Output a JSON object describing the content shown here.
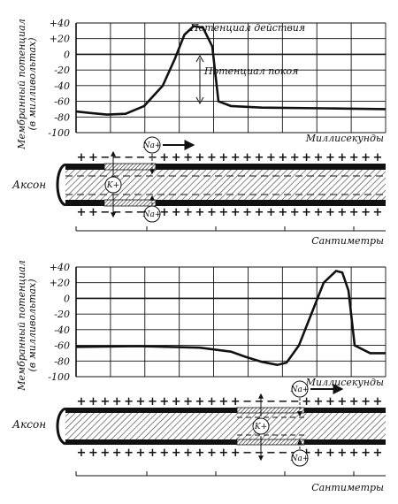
{
  "chart_data": [
    {
      "type": "line",
      "ylabel": "Мембранный потенциал (в милливольтах)",
      "xlabel": "Миллисекунды",
      "yticks": [
        "+40",
        "+20",
        "0",
        "-20",
        "-40",
        "-60",
        "-80",
        "-100"
      ],
      "ylim": [
        -100,
        40
      ],
      "grid": true,
      "annotations": [
        "Потенциал действия",
        "Потенциал покоя"
      ],
      "series": [
        {
          "x": [
            0,
            5,
            10,
            16,
            22,
            28,
            32,
            35,
            38,
            41,
            44,
            46,
            50,
            60,
            80,
            100
          ],
          "values": [
            -73,
            -75,
            -77,
            -76,
            -66,
            -40,
            -5,
            25,
            36,
            34,
            10,
            -60,
            -66,
            -68,
            -69,
            -70
          ]
        }
      ],
      "xlim": [
        0,
        100
      ]
    },
    {
      "type": "line",
      "ylabel": "Мембранный потенциал (в милливольтах)",
      "xlabel": "Миллисекунды",
      "yticks": [
        "+40",
        "+20",
        "0",
        "-20",
        "-40",
        "-60",
        "-80",
        "-100"
      ],
      "ylim": [
        -100,
        40
      ],
      "grid": true,
      "series": [
        {
          "x": [
            0,
            20,
            40,
            50,
            55,
            60,
            65,
            68,
            72,
            76,
            80,
            84,
            86,
            88,
            90,
            95,
            100
          ],
          "values": [
            -62,
            -61,
            -63,
            -68,
            -75,
            -81,
            -85,
            -82,
            -60,
            -20,
            20,
            35,
            33,
            10,
            -60,
            -70,
            -70
          ]
        }
      ],
      "xlim": [
        0,
        100
      ]
    }
  ],
  "axon_panels": [
    {
      "axon_label": "Аксон",
      "scale_label": "Сантиметры",
      "ion_na_top": "Na+",
      "ion_na_bottom": "Na+",
      "ion_k": "K+"
    },
    {
      "axon_label": "Аксон",
      "scale_label": "Сантиметры",
      "ion_na_top": "Na+",
      "ion_na_bottom": "Na+",
      "ion_k": "K+"
    }
  ]
}
